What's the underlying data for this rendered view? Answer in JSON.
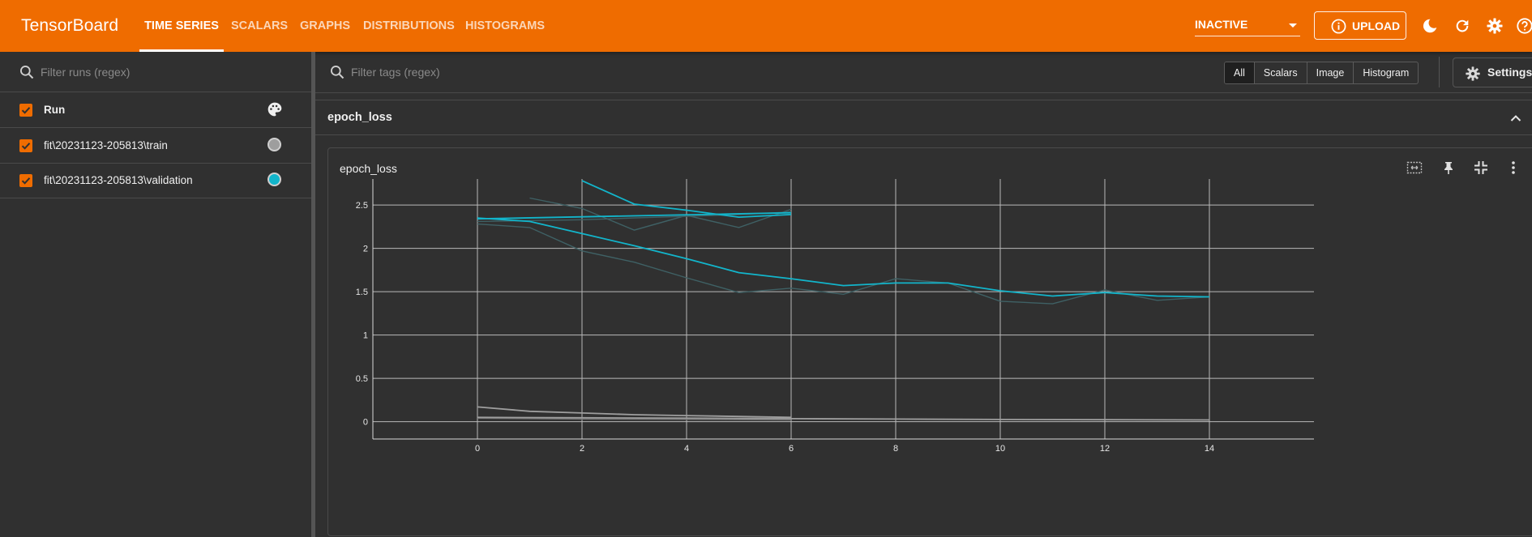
{
  "app": {
    "title": "TensorBoard"
  },
  "nav": {
    "tabs": [
      {
        "label": "TIME SERIES",
        "active": true
      },
      {
        "label": "SCALARS",
        "active": false
      },
      {
        "label": "GRAPHS",
        "active": false
      },
      {
        "label": "DISTRIBUTIONS",
        "active": false
      },
      {
        "label": "HISTOGRAMS",
        "active": false
      }
    ],
    "status_select": "INACTIVE",
    "upload_label": "UPLOAD"
  },
  "icons": {
    "dark_mode": "moon-icon",
    "reload": "refresh-icon",
    "settings": "gear-icon",
    "help": "help-icon",
    "search": "search-icon",
    "palette": "palette-icon",
    "collapse": "chevron-up-icon",
    "fit_domain": "fit-domain-icon",
    "pin": "pin-icon",
    "shrink": "collapse-icon",
    "more": "more-vert-icon"
  },
  "colors": {
    "header": "#ef6c00",
    "accent": "#ef6c00",
    "train": "#9e9e9e",
    "validation": "#12b5cb",
    "background": "#303030"
  },
  "sidebar": {
    "filter_placeholder": "Filter runs (regex)",
    "header_label": "Run",
    "runs": [
      {
        "label": "fit\\20231123-205813\\train",
        "color": "#9e9e9e",
        "checked": true
      },
      {
        "label": "fit\\20231123-205813\\validation",
        "color": "#12b5cb",
        "checked": true
      }
    ]
  },
  "main": {
    "filter_placeholder": "Filter tags (regex)",
    "type_filters": [
      {
        "label": "All",
        "active": true
      },
      {
        "label": "Scalars",
        "active": false
      },
      {
        "label": "Image",
        "active": false
      },
      {
        "label": "Histogram",
        "active": false
      }
    ],
    "settings_label": "Settings",
    "group_title": "epoch_loss",
    "card_title": "epoch_loss"
  },
  "chart_data": {
    "type": "line",
    "title": "epoch_loss",
    "xlabel": "",
    "ylabel": "",
    "xlim": [
      -2,
      16
    ],
    "ylim": [
      -0.2,
      2.8
    ],
    "x_ticks": [
      0,
      2,
      4,
      6,
      8,
      10,
      12,
      14
    ],
    "y_ticks": [
      0,
      0.5,
      1,
      1.5,
      2,
      2.5
    ],
    "y_tick_labels": [
      "0",
      "0.5",
      "1",
      "1.5",
      "2",
      "2.5"
    ],
    "grid": true,
    "legend": "none",
    "series": [
      {
        "color": "#12b5cb",
        "raw": false,
        "x": [
          0,
          1,
          2,
          3,
          4,
          5,
          6,
          7,
          8,
          9,
          10,
          11,
          12,
          13,
          14
        ],
        "y": [
          2.35,
          2.31,
          2.17,
          2.03,
          1.88,
          1.72,
          1.65,
          1.57,
          1.6,
          1.6,
          1.51,
          1.45,
          1.49,
          1.45,
          1.44
        ]
      },
      {
        "color": "#12b5cb",
        "raw": false,
        "x": [
          2,
          3,
          4,
          5,
          6
        ],
        "y": [
          2.78,
          2.51,
          2.44,
          2.36,
          2.39
        ]
      },
      {
        "color": "#12b5cb",
        "raw": false,
        "x": [
          0,
          6
        ],
        "y": [
          2.34,
          2.41
        ]
      },
      {
        "color": "#3f6165",
        "raw": true,
        "x": [
          0,
          1,
          2,
          3,
          4,
          5,
          6,
          7,
          8,
          9,
          10,
          11,
          12,
          13,
          14
        ],
        "y": [
          2.28,
          2.24,
          1.97,
          1.84,
          1.66,
          1.49,
          1.54,
          1.47,
          1.65,
          1.6,
          1.39,
          1.36,
          1.52,
          1.4,
          1.44
        ]
      },
      {
        "color": "#3f6165",
        "raw": true,
        "x": [
          1,
          2,
          3,
          4,
          5,
          6
        ],
        "y": [
          2.58,
          2.46,
          2.21,
          2.38,
          2.24,
          2.45
        ]
      },
      {
        "color": "#3f6165",
        "raw": true,
        "x": [
          0,
          1,
          2,
          3,
          4,
          5,
          6
        ],
        "y": [
          2.31,
          2.32,
          2.33,
          2.35,
          2.37,
          2.39,
          2.42
        ]
      },
      {
        "color": "#9e9e9e",
        "raw": false,
        "x": [
          0,
          1,
          2,
          3,
          4,
          5,
          6
        ],
        "y": [
          0.17,
          0.12,
          0.1,
          0.08,
          0.07,
          0.06,
          0.05
        ]
      },
      {
        "color": "#9e9e9e",
        "raw": false,
        "x": [
          0,
          2,
          4,
          6,
          8,
          10,
          12,
          14
        ],
        "y": [
          0.05,
          0.045,
          0.04,
          0.035,
          0.03,
          0.025,
          0.022,
          0.02
        ]
      },
      {
        "color": "#6f6f6f",
        "raw": true,
        "x": [
          0,
          2,
          4,
          6
        ],
        "y": [
          0.04,
          0.03,
          0.025,
          0.02
        ]
      }
    ]
  }
}
